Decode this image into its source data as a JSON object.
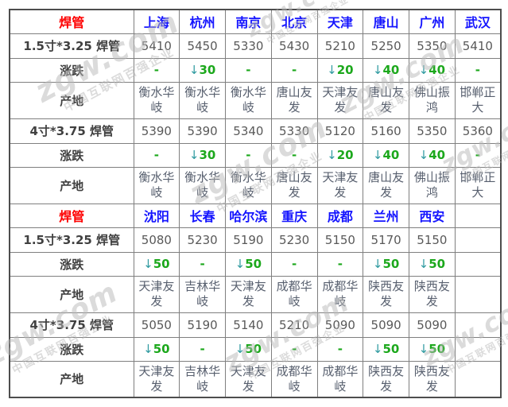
{
  "watermark": {
    "brand": "zgw.com",
    "tagline": "中国互联网百强企业"
  },
  "colors": {
    "product_red": "#fe0000",
    "city_blue": "#1414ff",
    "change_green": "#1ca81c",
    "arrow_teal": "#2f9aa0",
    "value_gray": "#595959",
    "label_dark": "#404040",
    "border_gray": "#7f7f7f"
  },
  "chart_data": {
    "type": "table",
    "title": "焊管价格表",
    "sections": [
      {
        "header": {
          "label": "焊管",
          "cities": [
            "上海",
            "杭州",
            "南京",
            "北京",
            "天津",
            "唐山",
            "广州",
            "武汉"
          ]
        },
        "rows": [
          {
            "label": "1.5寸*3.25 焊管",
            "type": "price",
            "values": [
              "5410",
              "5450",
              "5330",
              "5430",
              "5210",
              "5250",
              "5350",
              "5410"
            ]
          },
          {
            "label": "涨跌",
            "type": "change",
            "values": [
              "-",
              "↓30",
              "-",
              "-",
              "↓20",
              "↓40",
              "↓40",
              "-"
            ]
          },
          {
            "label": "产地",
            "type": "origin",
            "values": [
              "衡水华岐",
              "衡水华岐",
              "衡水华岐",
              "唐山友发",
              "天津友发",
              "唐山友发",
              "佛山振鸿",
              "邯郸正大"
            ]
          },
          {
            "label": "4寸*3.75 焊管",
            "type": "price",
            "values": [
              "5390",
              "5390",
              "5340",
              "5330",
              "5120",
              "5160",
              "5350",
              "5360"
            ]
          },
          {
            "label": "涨跌",
            "type": "change",
            "values": [
              "-",
              "↓30",
              "-",
              "-",
              "↓20",
              "↓40",
              "↓40",
              "-"
            ]
          },
          {
            "label": "产地",
            "type": "origin",
            "values": [
              "衡水华岐",
              "衡水华岐",
              "衡水华岐",
              "唐山友发",
              "天津友发",
              "唐山友发",
              "佛山振鸿",
              "邯郸正大"
            ]
          }
        ]
      },
      {
        "header": {
          "label": "焊管",
          "cities": [
            "沈阳",
            "长春",
            "哈尔滨",
            "重庆",
            "成都",
            "兰州",
            "西安",
            ""
          ]
        },
        "rows": [
          {
            "label": "1.5寸*3.25 焊管",
            "type": "price",
            "values": [
              "5080",
              "5230",
              "5190",
              "5230",
              "5150",
              "5170",
              "5150",
              ""
            ]
          },
          {
            "label": "涨跌",
            "type": "change",
            "values": [
              "↓50",
              "-",
              "↓50",
              "-",
              "-",
              "↓50",
              "↓50",
              ""
            ]
          },
          {
            "label": "产地",
            "type": "origin",
            "values": [
              "天津友发",
              "吉林华岐",
              "天津友发",
              "成都华岐",
              "成都华岐",
              "陕西友发",
              "陕西友发",
              ""
            ]
          },
          {
            "label": "4寸*3.75 焊管",
            "type": "price",
            "values": [
              "5050",
              "5190",
              "5140",
              "5210",
              "5090",
              "5090",
              "5090",
              ""
            ]
          },
          {
            "label": "涨跌",
            "type": "change",
            "values": [
              "↓50",
              "-",
              "↓50",
              "-",
              "-",
              "↓50",
              "↓50",
              ""
            ]
          },
          {
            "label": "产地",
            "type": "origin",
            "values": [
              "天津友发",
              "吉林华岐",
              "天津友发",
              "成都华岐",
              "成都华岐",
              "陕西友发",
              "陕西友发",
              ""
            ]
          }
        ]
      }
    ]
  }
}
